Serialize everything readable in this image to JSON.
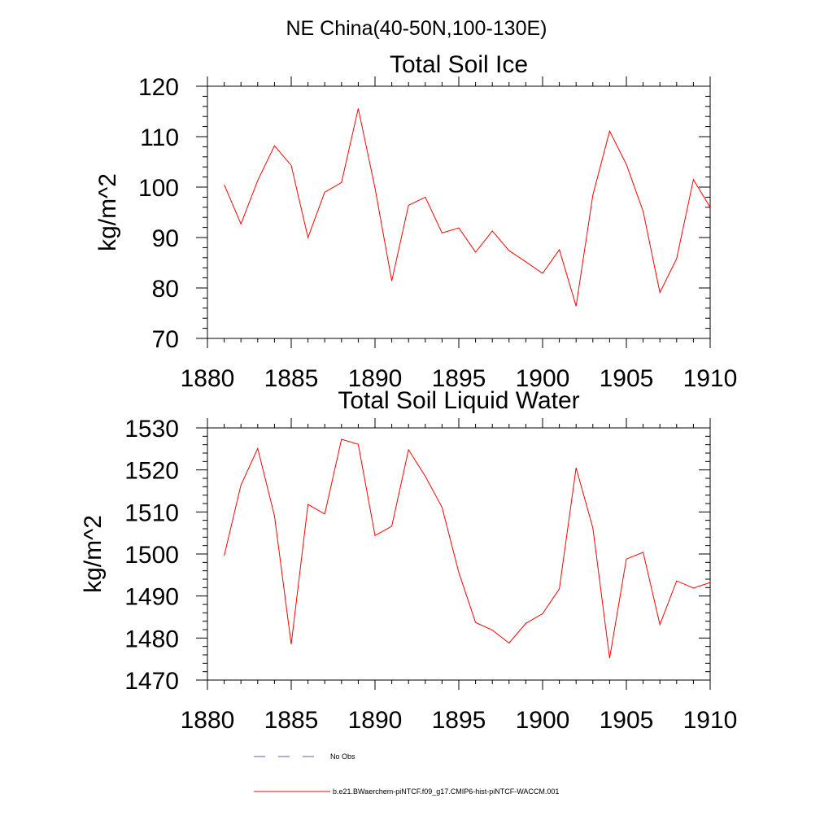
{
  "figure": {
    "title": "NE China(40-50N,100-130E)"
  },
  "chart_data": [
    {
      "type": "line",
      "title": "Total Soil Ice",
      "xlabel": "",
      "ylabel": "kg/m^2",
      "xlim": [
        1880,
        1910
      ],
      "ylim": [
        70,
        120
      ],
      "xticks": [
        1880,
        1885,
        1890,
        1895,
        1900,
        1905,
        1910
      ],
      "yticks": [
        70,
        80,
        90,
        100,
        110,
        120
      ],
      "grid": false,
      "series": [
        {
          "name": "b.e21.BWaerchem-piNTCF.f09_g17.CMIP6-hist-piNTCF-WACCM.001",
          "color": "#ff0000",
          "x": [
            1881,
            1882,
            1883,
            1884,
            1885,
            1886,
            1887,
            1888,
            1889,
            1890,
            1891,
            1892,
            1893,
            1894,
            1895,
            1896,
            1897,
            1898,
            1899,
            1900,
            1901,
            1902,
            1903,
            1904,
            1905,
            1906,
            1907,
            1908,
            1909,
            1910
          ],
          "y": [
            100.5,
            92.7,
            101.3,
            108.2,
            104.3,
            90.0,
            99.0,
            100.9,
            115.6,
            99.8,
            81.4,
            96.4,
            98.0,
            90.9,
            91.9,
            87.1,
            91.3,
            87.4,
            85.2,
            82.9,
            87.6,
            76.4,
            98.4,
            111.1,
            104.5,
            95.2,
            79.1,
            85.8,
            101.5,
            96.0
          ]
        }
      ]
    },
    {
      "type": "line",
      "title": "Total Soil Liquid Water",
      "xlabel": "",
      "ylabel": "kg/m^2",
      "xlim": [
        1880,
        1910
      ],
      "ylim": [
        1470,
        1530
      ],
      "xticks": [
        1880,
        1885,
        1890,
        1895,
        1900,
        1905,
        1910
      ],
      "yticks": [
        1470,
        1480,
        1490,
        1500,
        1510,
        1520,
        1530
      ],
      "grid": false,
      "series": [
        {
          "name": "b.e21.BWaerchem-piNTCF.f09_g17.CMIP6-hist-piNTCF-WACCM.001",
          "color": "#ff0000",
          "x": [
            1881,
            1882,
            1883,
            1884,
            1885,
            1886,
            1887,
            1888,
            1889,
            1890,
            1891,
            1892,
            1893,
            1894,
            1895,
            1896,
            1897,
            1898,
            1899,
            1900,
            1901,
            1902,
            1903,
            1904,
            1905,
            1906,
            1907,
            1908,
            1909,
            1910
          ],
          "y": [
            1499.6,
            1516.4,
            1525.1,
            1509.1,
            1478.5,
            1511.8,
            1509.5,
            1527.3,
            1526.1,
            1504.4,
            1506.6,
            1524.8,
            1518.5,
            1511.1,
            1495.6,
            1483.7,
            1481.9,
            1478.8,
            1483.5,
            1485.8,
            1491.7,
            1520.5,
            1506.2,
            1475.2,
            1498.8,
            1500.4,
            1483.2,
            1493.6,
            1491.9,
            1493.2
          ]
        }
      ]
    }
  ],
  "legend": {
    "placement": "bottom",
    "items": [
      {
        "label": "No Obs",
        "color": "#5566aa",
        "style": "dashed"
      },
      {
        "label": "b.e21.BWaerchem-piNTCF.f09_g17.CMIP6-hist-piNTCF-WACCM.001",
        "color": "#ff0000",
        "style": "solid"
      }
    ]
  }
}
